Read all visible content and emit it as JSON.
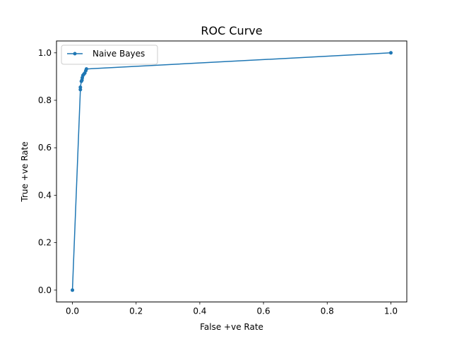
{
  "chart_data": {
    "type": "line",
    "title": "ROC Curve",
    "xlabel": "False +ve Rate",
    "ylabel": "True +ve Rate",
    "xlim": [
      -0.05,
      1.05
    ],
    "ylim": [
      -0.05,
      1.05
    ],
    "xticks": [
      "0.0",
      "0.2",
      "0.4",
      "0.6",
      "0.8",
      "1.0"
    ],
    "yticks": [
      "0.0",
      "0.2",
      "0.4",
      "0.6",
      "0.8",
      "1.0"
    ],
    "legend_position": "top-left",
    "grid": false,
    "series": [
      {
        "name": "Naive Bayes",
        "color": "#1f77b4",
        "marker": "circle",
        "points": [
          [
            0.0,
            0.0
          ],
          [
            0.025,
            0.845
          ],
          [
            0.025,
            0.855
          ],
          [
            0.028,
            0.88
          ],
          [
            0.03,
            0.885
          ],
          [
            0.031,
            0.895
          ],
          [
            0.033,
            0.905
          ],
          [
            0.036,
            0.91
          ],
          [
            0.039,
            0.915
          ],
          [
            0.042,
            0.925
          ],
          [
            0.044,
            0.932
          ],
          [
            1.0,
            1.0
          ]
        ]
      }
    ]
  }
}
